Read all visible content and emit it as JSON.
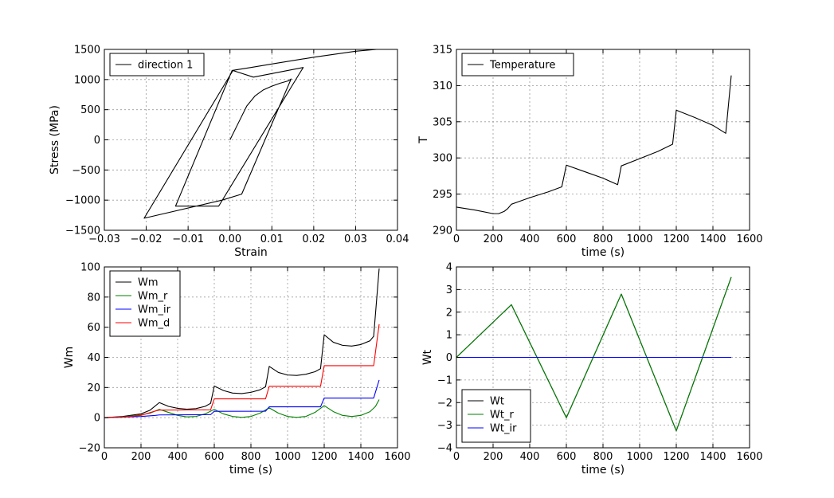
{
  "chart_data": [
    {
      "type": "line",
      "id": "stress",
      "xlabel": "Strain",
      "ylabel": "Stress (MPa)",
      "xlim": [
        -0.03,
        0.04
      ],
      "ylim": [
        -1500,
        1500
      ],
      "xticks": [
        -0.03,
        -0.02,
        -0.01,
        0.0,
        0.01,
        0.02,
        0.03,
        0.04
      ],
      "xtick_labels": [
        "−0.03",
        "−0.02",
        "−0.01",
        "0.00",
        "0.01",
        "0.02",
        "0.03",
        "0.04"
      ],
      "yticks": [
        -1500,
        -1000,
        -500,
        0,
        500,
        1000,
        1500
      ],
      "ytick_labels": [
        "−1500",
        "−1000",
        "−500",
        "0",
        "500",
        "1000",
        "1500"
      ],
      "grid": true,
      "legend": "top-left",
      "series": [
        {
          "name": "direction 1",
          "color": "#000000",
          "x": [
            0,
            0.002,
            0.004,
            0.006,
            0.008,
            0.01,
            0.012,
            0.014,
            0.0146,
            0.0028,
            -0.0019,
            -0.0205,
            0.0007,
            0.0056,
            0.0175,
            0.0166,
            -0.0027,
            -0.013,
            0.0005,
            0.005,
            0.011,
            0.02,
            0.03,
            0.035
          ],
          "y": [
            0,
            280,
            560,
            730,
            830,
            890,
            940,
            980,
            1010,
            -900,
            -1000,
            -1300,
            1150,
            1040,
            1200,
            1100,
            -1100,
            -1100,
            1150,
            1200,
            1270,
            1370,
            1470,
            1500
          ]
        }
      ]
    },
    {
      "type": "line",
      "id": "temperature",
      "xlabel": "time (s)",
      "ylabel": "T",
      "xlim": [
        0,
        1600
      ],
      "ylim": [
        290,
        315
      ],
      "xticks": [
        0,
        200,
        400,
        600,
        800,
        1000,
        1200,
        1400,
        1600
      ],
      "xtick_labels": [
        "0",
        "200",
        "400",
        "600",
        "800",
        "1000",
        "1200",
        "1400",
        "1600"
      ],
      "yticks": [
        290,
        295,
        300,
        305,
        310,
        315
      ],
      "ytick_labels": [
        "290",
        "295",
        "300",
        "305",
        "310",
        "315"
      ],
      "grid": true,
      "legend": "top-left",
      "series": [
        {
          "name": "Temperature",
          "color": "#000000",
          "x": [
            0,
            100,
            200,
            230,
            260,
            280,
            300,
            400,
            500,
            575,
            600,
            700,
            800,
            880,
            900,
            1000,
            1100,
            1180,
            1200,
            1300,
            1400,
            1470,
            1500
          ],
          "y": [
            293.2,
            292.8,
            292.3,
            292.3,
            292.6,
            293.0,
            293.6,
            294.5,
            295.3,
            296.0,
            299.0,
            298.1,
            297.2,
            296.3,
            298.9,
            299.9,
            300.9,
            301.9,
            306.6,
            305.6,
            304.5,
            303.4,
            311.4
          ]
        }
      ]
    },
    {
      "type": "line",
      "id": "wm",
      "xlabel": "time (s)",
      "ylabel": "Wm",
      "xlim": [
        0,
        1600
      ],
      "ylim": [
        -20,
        100
      ],
      "xticks": [
        0,
        200,
        400,
        600,
        800,
        1000,
        1200,
        1400,
        1600
      ],
      "xtick_labels": [
        "0",
        "200",
        "400",
        "600",
        "800",
        "1000",
        "1200",
        "1400",
        "1600"
      ],
      "yticks": [
        -20,
        0,
        20,
        40,
        60,
        80,
        100
      ],
      "ytick_labels": [
        "−20",
        "0",
        "20",
        "40",
        "60",
        "80",
        "100"
      ],
      "grid": true,
      "legend": "top-left",
      "series": [
        {
          "name": "Wm",
          "color": "#000000",
          "x": [
            0,
            100,
            200,
            250,
            300,
            350,
            400,
            450,
            500,
            550,
            580,
            600,
            650,
            700,
            750,
            800,
            850,
            880,
            900,
            950,
            1000,
            1050,
            1100,
            1150,
            1180,
            1200,
            1250,
            1300,
            1350,
            1400,
            1450,
            1470,
            1500
          ],
          "y": [
            0,
            0.8,
            2.5,
            5,
            10,
            7.5,
            6.2,
            5.6,
            6,
            7.5,
            9.5,
            21,
            18,
            16.3,
            16,
            16.8,
            18.5,
            20.5,
            34,
            30,
            28.3,
            28,
            28.8,
            30.5,
            32.5,
            55,
            50,
            48,
            47.5,
            48.5,
            51,
            54,
            99
          ]
        },
        {
          "name": "Wm_r",
          "color": "#008000",
          "x": [
            0,
            100,
            200,
            250,
            300,
            350,
            400,
            450,
            500,
            550,
            600,
            650,
            700,
            750,
            800,
            850,
            900,
            950,
            1000,
            1050,
            1100,
            1150,
            1200,
            1250,
            1300,
            1350,
            1400,
            1450,
            1480,
            1500
          ],
          "y": [
            0,
            0.5,
            1.8,
            3,
            5.5,
            3.5,
            1.5,
            0.5,
            0.8,
            2.5,
            5.5,
            2.5,
            0.8,
            0.2,
            0.8,
            3,
            6.5,
            3,
            0.8,
            0.2,
            0.8,
            3.5,
            8,
            4,
            1.5,
            0.8,
            1.5,
            4,
            7.5,
            12
          ]
        },
        {
          "name": "Wm_ir",
          "color": "#0000ff",
          "x": [
            0,
            100,
            200,
            280,
            300,
            580,
            600,
            880,
            900,
            1180,
            1200,
            1470,
            1500
          ],
          "y": [
            0,
            0.3,
            0.8,
            1.5,
            1.8,
            2,
            4.2,
            4.3,
            7.2,
            7.2,
            13,
            13,
            25
          ]
        },
        {
          "name": "Wm_d",
          "color": "#ff0000",
          "x": [
            0,
            100,
            200,
            280,
            300,
            580,
            600,
            880,
            900,
            1180,
            1200,
            1470,
            1500
          ],
          "y": [
            0,
            0.3,
            1.5,
            4.5,
            5,
            5.2,
            12.5,
            12.5,
            20.8,
            20.8,
            34.5,
            34.5,
            62
          ]
        }
      ]
    },
    {
      "type": "line",
      "id": "wt",
      "xlabel": "time (s)",
      "ylabel": "Wt",
      "xlim": [
        0,
        1600
      ],
      "ylim": [
        -4,
        4
      ],
      "xticks": [
        0,
        200,
        400,
        600,
        800,
        1000,
        1200,
        1400,
        1600
      ],
      "xtick_labels": [
        "0",
        "200",
        "400",
        "600",
        "800",
        "1000",
        "1200",
        "1400",
        "1600"
      ],
      "yticks": [
        -4,
        -3,
        -2,
        -1,
        0,
        1,
        2,
        3,
        4
      ],
      "ytick_labels": [
        "−4",
        "−3",
        "−2",
        "−1",
        "0",
        "1",
        "2",
        "3",
        "4"
      ],
      "grid": true,
      "legend": "bottom-left",
      "series": [
        {
          "name": "Wt",
          "color": "#000000",
          "x": [
            0,
            300,
            600,
            900,
            1200,
            1500
          ],
          "y": [
            0,
            2.33,
            -2.67,
            2.8,
            -3.25,
            3.55
          ]
        },
        {
          "name": "Wt_r",
          "color": "#008000",
          "x": [
            0,
            300,
            600,
            900,
            1200,
            1500
          ],
          "y": [
            0,
            2.33,
            -2.67,
            2.8,
            -3.25,
            3.55
          ]
        },
        {
          "name": "Wt_ir",
          "color": "#0000ff",
          "x": [
            0,
            1500
          ],
          "y": [
            0,
            0
          ]
        }
      ]
    }
  ]
}
